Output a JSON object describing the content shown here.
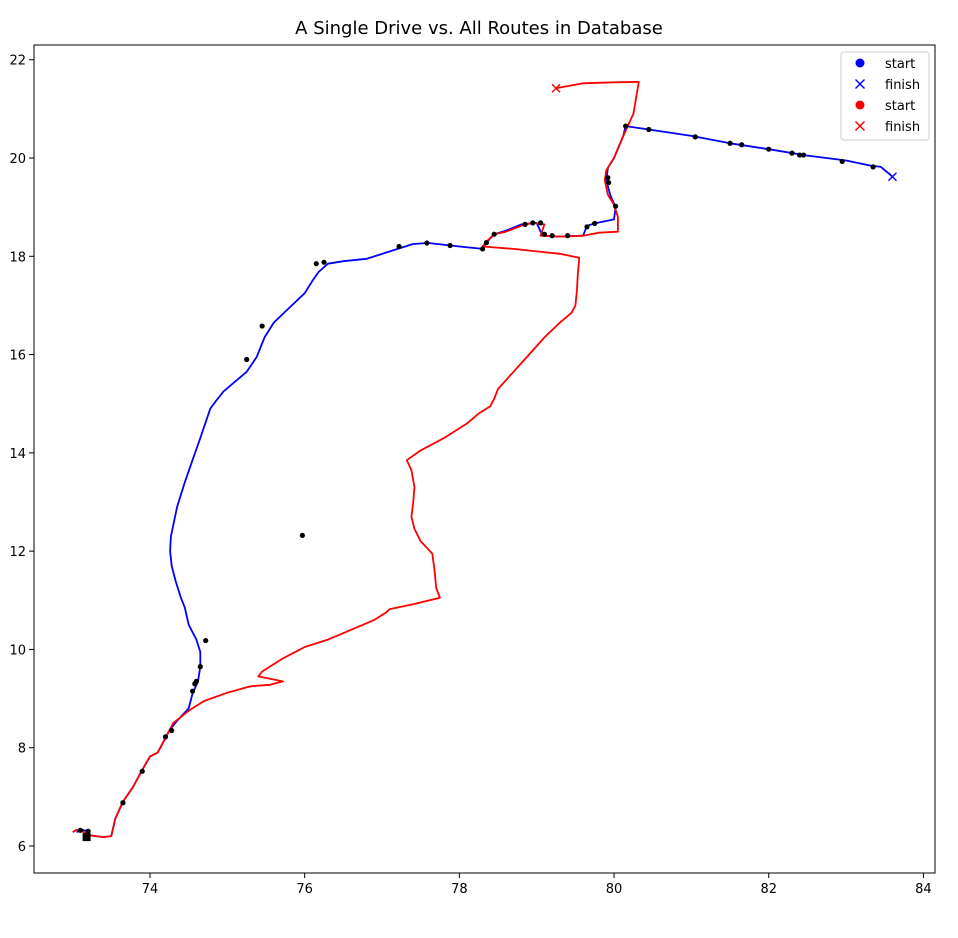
{
  "chart_data": {
    "type": "line",
    "title": "A Single Drive vs. All Routes in Database",
    "xlabel": "",
    "ylabel": "",
    "xlim": [
      72.5,
      84.15
    ],
    "ylim": [
      5.45,
      22.3
    ],
    "xticks": [
      74,
      76,
      78,
      80,
      82,
      84
    ],
    "yticks": [
      6,
      8,
      10,
      12,
      14,
      16,
      18,
      20,
      22
    ],
    "grid": false,
    "legend_position": "top-right",
    "colors": {
      "blue": "#0000ff",
      "red": "#ff0000",
      "points": "#000000"
    },
    "legend": [
      {
        "label": "start",
        "marker": "o",
        "color": "#0000ff"
      },
      {
        "label": "finish",
        "marker": "x",
        "color": "#0000ff"
      },
      {
        "label": "start",
        "marker": "o",
        "color": "#ff0000"
      },
      {
        "label": "finish",
        "marker": "x",
        "color": "#ff0000"
      }
    ],
    "series": [
      {
        "color": "#0000ff",
        "points": [
          [
            73.05,
            6.28
          ],
          [
            73.12,
            6.33
          ],
          [
            73.2,
            6.3
          ],
          [
            73.22,
            6.22
          ],
          [
            73.3,
            6.2
          ],
          [
            73.4,
            6.18
          ],
          [
            73.5,
            6.2
          ],
          [
            73.55,
            6.55
          ],
          [
            73.65,
            6.9
          ],
          [
            73.78,
            7.2
          ],
          [
            73.9,
            7.55
          ],
          [
            74.0,
            7.82
          ],
          [
            74.1,
            7.9
          ],
          [
            74.2,
            8.2
          ],
          [
            74.25,
            8.35
          ],
          [
            74.35,
            8.55
          ],
          [
            74.5,
            8.8
          ],
          [
            74.55,
            9.1
          ],
          [
            74.62,
            9.35
          ],
          [
            74.65,
            9.65
          ],
          [
            74.65,
            9.95
          ],
          [
            74.6,
            10.2
          ],
          [
            74.5,
            10.5
          ],
          [
            74.45,
            10.85
          ],
          [
            74.4,
            11.05
          ],
          [
            74.33,
            11.4
          ],
          [
            74.28,
            11.7
          ],
          [
            74.26,
            12.0
          ],
          [
            74.27,
            12.3
          ],
          [
            74.35,
            12.9
          ],
          [
            74.45,
            13.4
          ],
          [
            74.55,
            13.85
          ],
          [
            74.65,
            14.3
          ],
          [
            74.78,
            14.9
          ],
          [
            74.85,
            15.05
          ],
          [
            74.95,
            15.25
          ],
          [
            75.1,
            15.45
          ],
          [
            75.25,
            15.65
          ],
          [
            75.38,
            15.95
          ],
          [
            75.48,
            16.35
          ],
          [
            75.6,
            16.65
          ],
          [
            75.8,
            16.95
          ],
          [
            76.0,
            17.25
          ],
          [
            76.1,
            17.5
          ],
          [
            76.18,
            17.68
          ],
          [
            76.3,
            17.85
          ],
          [
            76.5,
            17.9
          ],
          [
            76.8,
            17.95
          ],
          [
            77.1,
            18.1
          ],
          [
            77.4,
            18.25
          ],
          [
            77.6,
            18.27
          ],
          [
            78.0,
            18.2
          ],
          [
            78.3,
            18.15
          ],
          [
            78.35,
            18.28
          ],
          [
            78.45,
            18.45
          ],
          [
            78.6,
            18.52
          ],
          [
            78.8,
            18.65
          ],
          [
            79.0,
            18.68
          ],
          [
            79.05,
            18.5
          ],
          [
            79.1,
            18.42
          ],
          [
            79.3,
            18.4
          ],
          [
            79.6,
            18.42
          ],
          [
            79.65,
            18.62
          ],
          [
            79.75,
            18.67
          ],
          [
            80.0,
            18.75
          ],
          [
            80.02,
            19.0
          ],
          [
            79.95,
            19.25
          ],
          [
            79.9,
            19.55
          ],
          [
            79.92,
            19.8
          ],
          [
            80.0,
            20.0
          ],
          [
            80.12,
            20.45
          ],
          [
            80.15,
            20.65
          ],
          [
            80.45,
            20.58
          ],
          [
            81.0,
            20.45
          ],
          [
            81.5,
            20.3
          ],
          [
            82.0,
            20.18
          ],
          [
            82.5,
            20.05
          ],
          [
            83.0,
            19.95
          ],
          [
            83.3,
            19.85
          ],
          [
            83.45,
            19.82
          ],
          [
            83.6,
            19.62
          ]
        ]
      },
      {
        "color": "#ff0000",
        "points": [
          [
            73.0,
            6.28
          ],
          [
            73.05,
            6.33
          ],
          [
            73.15,
            6.28
          ],
          [
            73.2,
            6.22
          ],
          [
            73.3,
            6.2
          ],
          [
            73.4,
            6.18
          ],
          [
            73.5,
            6.2
          ],
          [
            73.55,
            6.55
          ],
          [
            73.65,
            6.9
          ],
          [
            73.78,
            7.2
          ],
          [
            73.9,
            7.55
          ],
          [
            74.0,
            7.82
          ],
          [
            74.1,
            7.9
          ],
          [
            74.2,
            8.2
          ],
          [
            74.3,
            8.5
          ],
          [
            74.5,
            8.75
          ],
          [
            74.7,
            8.95
          ],
          [
            75.0,
            9.12
          ],
          [
            75.3,
            9.25
          ],
          [
            75.55,
            9.28
          ],
          [
            75.72,
            9.35
          ],
          [
            75.4,
            9.45
          ],
          [
            75.45,
            9.55
          ],
          [
            75.7,
            9.8
          ],
          [
            76.0,
            10.05
          ],
          [
            76.3,
            10.2
          ],
          [
            76.6,
            10.4
          ],
          [
            76.9,
            10.6
          ],
          [
            77.05,
            10.75
          ],
          [
            77.1,
            10.82
          ],
          [
            77.4,
            10.92
          ],
          [
            77.75,
            11.05
          ],
          [
            77.7,
            11.25
          ],
          [
            77.68,
            11.6
          ],
          [
            77.65,
            11.95
          ],
          [
            77.5,
            12.2
          ],
          [
            77.42,
            12.45
          ],
          [
            77.38,
            12.7
          ],
          [
            77.4,
            12.95
          ],
          [
            77.42,
            13.3
          ],
          [
            77.38,
            13.65
          ],
          [
            77.32,
            13.85
          ],
          [
            77.5,
            14.05
          ],
          [
            77.8,
            14.3
          ],
          [
            78.1,
            14.6
          ],
          [
            78.25,
            14.8
          ],
          [
            78.4,
            14.95
          ],
          [
            78.45,
            15.1
          ],
          [
            78.5,
            15.3
          ],
          [
            78.7,
            15.65
          ],
          [
            78.9,
            16.0
          ],
          [
            79.1,
            16.35
          ],
          [
            79.3,
            16.65
          ],
          [
            79.45,
            16.85
          ],
          [
            79.5,
            17.0
          ],
          [
            79.52,
            17.3
          ],
          [
            79.53,
            17.6
          ],
          [
            79.55,
            17.97
          ],
          [
            79.3,
            18.05
          ],
          [
            79.0,
            18.1
          ],
          [
            78.7,
            18.15
          ],
          [
            78.3,
            18.2
          ],
          [
            78.35,
            18.3
          ],
          [
            78.45,
            18.45
          ],
          [
            78.6,
            18.5
          ],
          [
            78.8,
            18.62
          ],
          [
            78.95,
            18.68
          ],
          [
            79.1,
            18.65
          ],
          [
            79.05,
            18.42
          ],
          [
            79.3,
            18.4
          ],
          [
            79.6,
            18.42
          ],
          [
            79.8,
            18.48
          ],
          [
            80.05,
            18.5
          ],
          [
            80.05,
            18.8
          ],
          [
            80.0,
            19.05
          ],
          [
            79.92,
            19.25
          ],
          [
            79.88,
            19.55
          ],
          [
            79.9,
            19.75
          ],
          [
            80.0,
            20.0
          ],
          [
            80.12,
            20.45
          ],
          [
            80.25,
            20.9
          ],
          [
            80.32,
            21.55
          ],
          [
            80.0,
            21.54
          ],
          [
            79.6,
            21.52
          ],
          [
            79.25,
            21.42
          ]
        ]
      }
    ],
    "point_markers": [
      [
        73.1,
        6.32
      ],
      [
        73.2,
        6.3
      ],
      [
        73.65,
        6.88
      ],
      [
        73.9,
        7.52
      ],
      [
        74.2,
        8.22
      ],
      [
        74.28,
        8.35
      ],
      [
        74.55,
        9.15
      ],
      [
        74.58,
        9.3
      ],
      [
        74.6,
        9.35
      ],
      [
        74.65,
        9.65
      ],
      [
        74.72,
        10.18
      ],
      [
        75.25,
        15.9
      ],
      [
        75.45,
        16.58
      ],
      [
        75.97,
        12.32
      ],
      [
        76.15,
        17.85
      ],
      [
        76.25,
        17.88
      ],
      [
        77.22,
        18.2
      ],
      [
        77.58,
        18.27
      ],
      [
        77.88,
        18.22
      ],
      [
        78.3,
        18.15
      ],
      [
        78.35,
        18.28
      ],
      [
        78.45,
        18.45
      ],
      [
        78.85,
        18.65
      ],
      [
        78.95,
        18.68
      ],
      [
        79.05,
        18.68
      ],
      [
        79.1,
        18.45
      ],
      [
        79.2,
        18.42
      ],
      [
        79.4,
        18.42
      ],
      [
        79.65,
        18.6
      ],
      [
        79.75,
        18.67
      ],
      [
        79.92,
        19.6
      ],
      [
        79.93,
        19.5
      ],
      [
        80.02,
        19.02
      ],
      [
        80.15,
        20.65
      ],
      [
        80.45,
        20.58
      ],
      [
        81.05,
        20.43
      ],
      [
        81.5,
        20.3
      ],
      [
        81.65,
        20.27
      ],
      [
        82.0,
        20.18
      ],
      [
        82.3,
        20.1
      ],
      [
        82.4,
        20.06
      ],
      [
        82.45,
        20.06
      ],
      [
        82.95,
        19.93
      ],
      [
        83.35,
        19.82
      ]
    ],
    "square_markers": [
      [
        73.18,
        6.18
      ]
    ],
    "start_markers": [
      {
        "x": 73.18,
        "y": 6.18,
        "color": "#000000"
      }
    ],
    "finish_markers": [
      {
        "x": 83.6,
        "y": 19.62,
        "color": "#0000ff"
      },
      {
        "x": 79.25,
        "y": 21.42,
        "color": "#ff0000"
      }
    ]
  }
}
